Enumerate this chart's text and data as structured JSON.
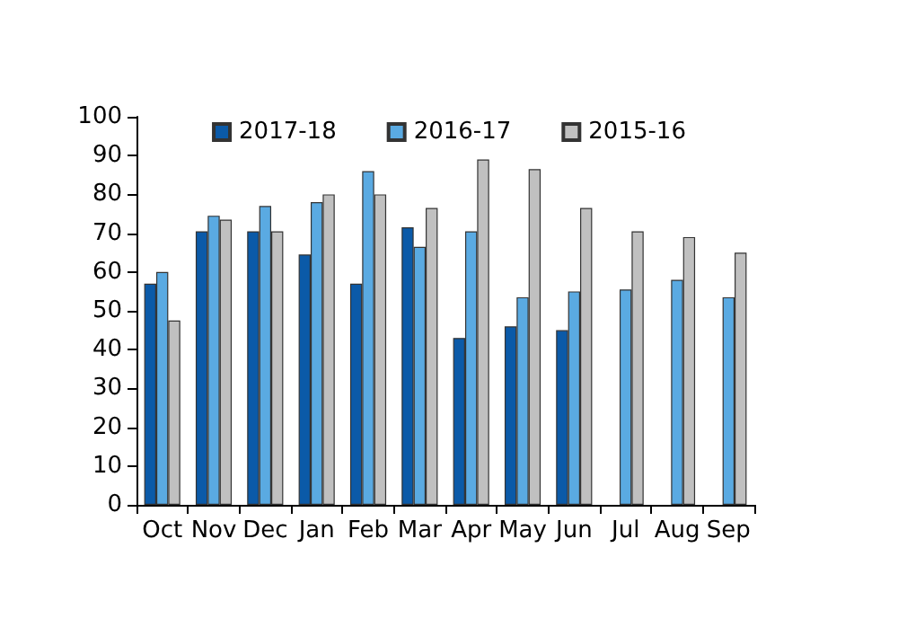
{
  "chart_data": {
    "type": "bar",
    "categories": [
      "Oct",
      "Nov",
      "Dec",
      "Jan",
      "Feb",
      "Mar",
      "Apr",
      "May",
      "Jun",
      "Jul",
      "Aug",
      "Sep"
    ],
    "series": [
      {
        "name": "2017-18",
        "color": "#0b5aa8",
        "values": [
          57,
          70.5,
          70.5,
          64.5,
          57,
          71.5,
          43,
          46,
          45,
          null,
          null,
          null
        ]
      },
      {
        "name": "2016-17",
        "color": "#5aaae2",
        "values": [
          60,
          74.5,
          77,
          78,
          86,
          66.5,
          70.5,
          53.5,
          55,
          55.5,
          58,
          53.5
        ]
      },
      {
        "name": "2015-16",
        "color": "#c0c0c0",
        "values": [
          47.5,
          73.5,
          70.5,
          80,
          80,
          76.5,
          89,
          86.5,
          76.5,
          70.5,
          69,
          65
        ]
      }
    ],
    "ylim": [
      0,
      100
    ],
    "yticks": [
      0,
      10,
      20,
      30,
      40,
      50,
      60,
      70,
      80,
      90,
      100
    ],
    "grid": false,
    "legend": "top"
  }
}
